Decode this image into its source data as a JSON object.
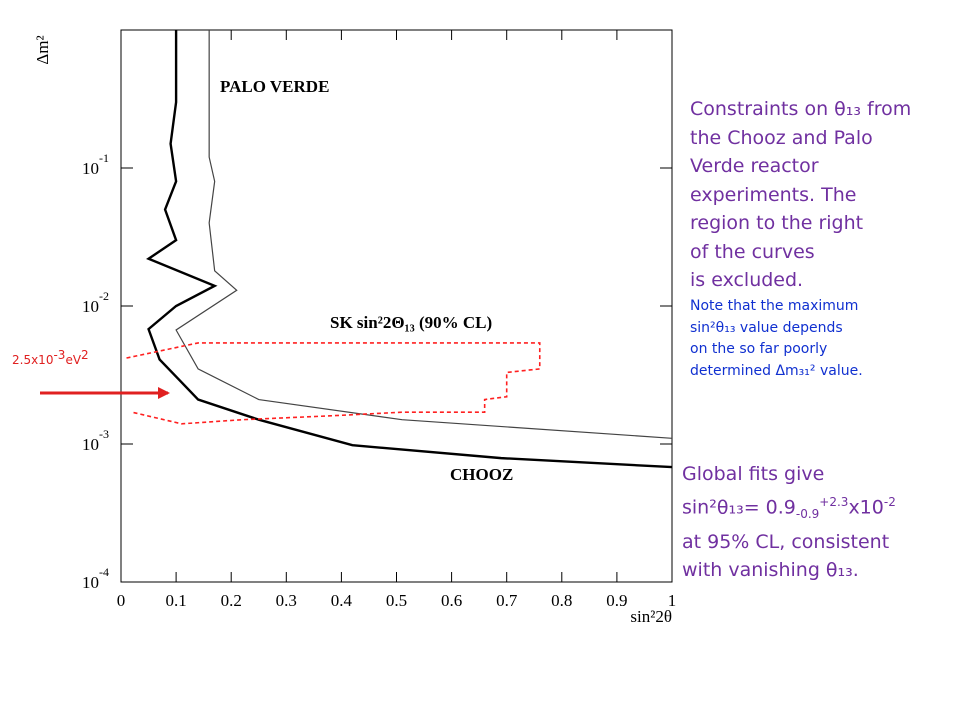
{
  "chart_data": {
    "type": "line",
    "x_label": "sin²2θ",
    "y_label": "Δm²",
    "log_y": true,
    "xlim": [
      0,
      1
    ],
    "xticks": [
      0,
      0.1,
      0.2,
      0.3,
      0.4,
      0.5,
      0.6,
      0.7,
      0.8,
      0.9,
      1
    ],
    "ylim": [
      0.0001,
      1
    ],
    "yticks": [
      {
        "value": 0.0001,
        "label": "10",
        "exponent": "-4"
      },
      {
        "value": 0.001,
        "label": "10",
        "exponent": "-3"
      },
      {
        "value": 0.01,
        "label": "10",
        "exponent": "-2"
      },
      {
        "value": 0.1,
        "label": "10",
        "exponent": "-1"
      }
    ],
    "annotations": [
      "PALO VERDE",
      "SK sin²2Θ₁₃ (90% CL)",
      "CHOOZ"
    ],
    "series": [
      {
        "name": "CHOOZ",
        "color": "#000000",
        "dash": false,
        "width": 2.4,
        "x": [
          0.1,
          0.1,
          0.09,
          0.1,
          0.08,
          0.1,
          0.05,
          0.17,
          0.1,
          0.05,
          0.07,
          0.14,
          0.25,
          0.42,
          0.69,
          1
        ],
        "values": [
          1,
          0.3,
          0.15,
          0.08,
          0.05,
          0.03,
          0.022,
          0.014,
          0.01,
          0.0068,
          0.0041,
          0.0021,
          0.0015,
          0.00098,
          0.00079,
          0.00068
        ]
      },
      {
        "name": "PALO VERDE",
        "color": "#444444",
        "dash": false,
        "width": 1.2,
        "x": [
          0.16,
          0.16,
          0.17,
          0.16,
          0.17,
          0.21,
          0.1,
          0.14,
          0.25,
          0.51,
          1
        ],
        "values": [
          1,
          0.12,
          0.08,
          0.04,
          0.018,
          0.013,
          0.0067,
          0.0035,
          0.0021,
          0.0015,
          0.0011
        ]
      },
      {
        "name": "SK",
        "color": "#ff2020",
        "dash": true,
        "width": 1.6,
        "x": [
          0.01,
          0.14,
          0.76,
          0.76,
          0.7,
          0.7,
          0.66,
          0.66,
          0.51,
          0.38,
          0.22,
          0.11,
          0.02
        ],
        "values": [
          0.0042,
          0.0054,
          0.0054,
          0.0035,
          0.0033,
          0.0022,
          0.0021,
          0.0017,
          0.0017,
          0.0016,
          0.0015,
          0.0014,
          0.0017
        ]
      }
    ]
  },
  "marker": {
    "text": "2.5x10",
    "exponent": "-3",
    "unit": "eV",
    "unit_exponent": "2"
  },
  "slide": {
    "caption": [
      "Constraints on θ₁₃ from",
      "the Chooz and Palo",
      "Verde reactor",
      "experiments. The",
      "region to the right",
      "of the curves",
      "is excluded."
    ],
    "note": [
      "Note that the maximum",
      "sin²θ₁₃ value depends",
      "on the so far poorly",
      "determined Δm₃₁² value."
    ],
    "fit": [
      "Global fits give",
      "sin²θ₁₃= 0.9",
      "-0.9",
      "+2.3",
      "x10",
      "-2",
      "at 95% CL, consistent",
      "with vanishing θ₁₃."
    ]
  }
}
